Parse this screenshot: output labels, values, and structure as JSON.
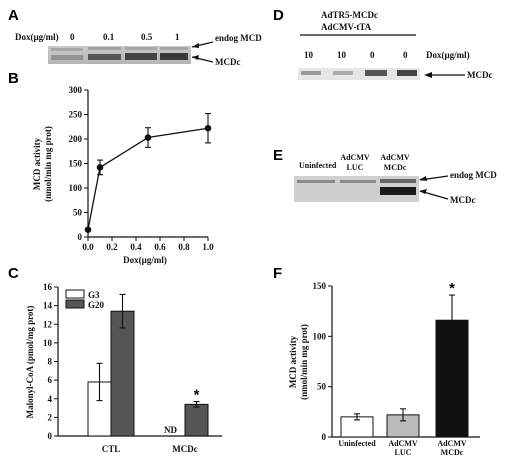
{
  "panels": {
    "A": {
      "label": "A",
      "dose_title": "Dox(µg/ml)",
      "doses": [
        "0",
        "0.1",
        "0.5",
        "1"
      ],
      "band_labels": [
        "endog MCD",
        "MCDc"
      ]
    },
    "D": {
      "label": "D",
      "construct_lines": [
        "AdTR5-MCDc",
        "AdCMV-tTA"
      ],
      "doses": [
        "10",
        "10",
        "0",
        "0"
      ],
      "dose_title": "Dox(µg/ml)",
      "band_labels": [
        "MCDc"
      ]
    },
    "E": {
      "label": "E",
      "lanes": [
        [
          "Uninfected"
        ],
        [
          "AdCMV",
          "LUC"
        ],
        [
          "AdCMV",
          "MCDc"
        ]
      ],
      "band_labels": [
        "endog MCD",
        "MCDc"
      ]
    },
    "B": {
      "label": "B"
    },
    "C": {
      "label": "C",
      "nd_label": "ND",
      "sig_mark": "*"
    },
    "F": {
      "label": "F",
      "sig_mark": "*"
    }
  },
  "chart_data": [
    {
      "id": "B",
      "type": "line",
      "title": "",
      "xlabel": "Dox(µg/ml)",
      "ylabel": [
        "MCD activity",
        "(nmol/min mg prot)"
      ],
      "x": [
        0,
        0.1,
        0.5,
        1.0
      ],
      "y": [
        15,
        142,
        203,
        222
      ],
      "err": [
        0,
        15,
        20,
        30
      ],
      "xlim": [
        0,
        1.0
      ],
      "ylim": [
        0,
        300
      ],
      "xticks": [
        "0.0",
        "0.2",
        "0.4",
        "0.6",
        "0.8",
        "1.0"
      ],
      "yticks": [
        "0",
        "50",
        "100",
        "150",
        "200",
        "250",
        "300"
      ]
    },
    {
      "id": "C",
      "type": "bar",
      "title": "",
      "xlabel": "",
      "ylabel": "Malonyl-CoA (pmol/mg prot)",
      "categories": [
        "CTL",
        "MCDc"
      ],
      "series": [
        {
          "name": "G3",
          "color": "#ffffff",
          "values": [
            5.8,
            null
          ],
          "err": [
            2.0,
            null
          ]
        },
        {
          "name": "G20",
          "color": "#555555",
          "values": [
            13.4,
            3.4
          ],
          "err": [
            1.8,
            0.3
          ]
        }
      ],
      "ylim": [
        0,
        16
      ],
      "yticks": [
        "0",
        "2",
        "4",
        "6",
        "8",
        "10",
        "12",
        "14",
        "16"
      ],
      "legend": "top-left"
    },
    {
      "id": "F",
      "type": "bar",
      "title": "",
      "xlabel": "",
      "ylabel": [
        "MCD activity",
        "(nmol/min mg prot)"
      ],
      "categories": [
        [
          "Uninfected"
        ],
        [
          "AdCMV",
          "LUC"
        ],
        [
          "AdCMV",
          "MCDc"
        ]
      ],
      "values": [
        20,
        22,
        116
      ],
      "err": [
        3,
        6,
        25
      ],
      "colors": [
        "#ffffff",
        "#bbbbbb",
        "#111111"
      ],
      "ylim": [
        0,
        150
      ],
      "yticks": [
        "0",
        "50",
        "100",
        "150"
      ]
    }
  ]
}
